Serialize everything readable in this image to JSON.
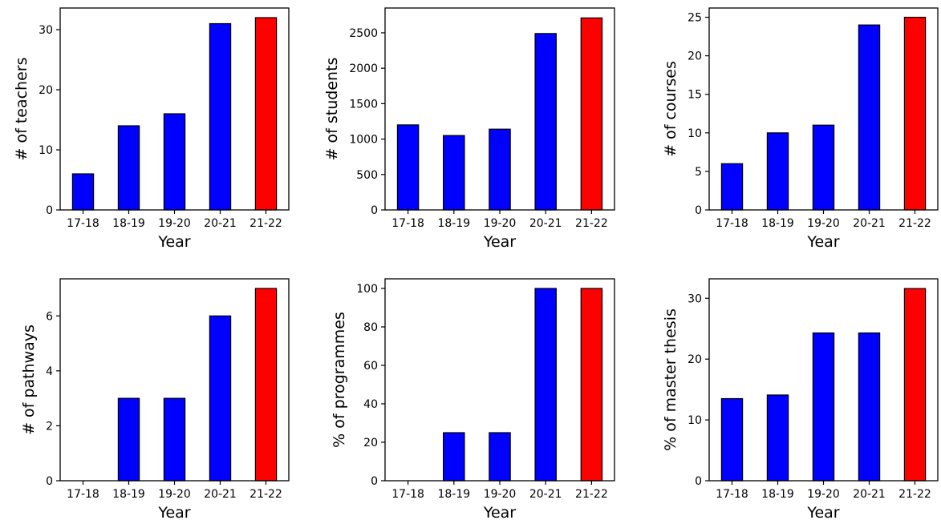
{
  "chart_data": [
    {
      "type": "bar",
      "categories": [
        "17-18",
        "18-19",
        "19-20",
        "20-21",
        "21-22"
      ],
      "values": [
        6,
        14,
        16,
        31,
        32
      ],
      "xlabel": "Year",
      "ylabel": "# of teachers",
      "ylim": [
        0,
        33.6
      ],
      "yticks": [
        0,
        10,
        20,
        30
      ],
      "colors": [
        "#0000ff",
        "#0000ff",
        "#0000ff",
        "#0000ff",
        "#ff0000"
      ],
      "grid": false
    },
    {
      "type": "bar",
      "categories": [
        "17-18",
        "18-19",
        "19-20",
        "20-21",
        "21-22"
      ],
      "values": [
        1200,
        1050,
        1140,
        2490,
        2710
      ],
      "xlabel": "Year",
      "ylabel": "# of students",
      "ylim": [
        0,
        2850
      ],
      "yticks": [
        0,
        500,
        1000,
        1500,
        2000,
        2500
      ],
      "colors": [
        "#0000ff",
        "#0000ff",
        "#0000ff",
        "#0000ff",
        "#ff0000"
      ],
      "grid": false
    },
    {
      "type": "bar",
      "categories": [
        "17-18",
        "18-19",
        "19-20",
        "20-21",
        "21-22"
      ],
      "values": [
        6,
        10,
        11,
        24,
        25
      ],
      "xlabel": "Year",
      "ylabel": "# of courses",
      "ylim": [
        0,
        26.2
      ],
      "yticks": [
        0,
        5,
        10,
        15,
        20,
        25
      ],
      "colors": [
        "#0000ff",
        "#0000ff",
        "#0000ff",
        "#0000ff",
        "#ff0000"
      ],
      "grid": false
    },
    {
      "type": "bar",
      "categories": [
        "17-18",
        "18-19",
        "19-20",
        "20-21",
        "21-22"
      ],
      "values": [
        0,
        3,
        3,
        6,
        7
      ],
      "xlabel": "Year",
      "ylabel": "# of pathways",
      "ylim": [
        0,
        7.35
      ],
      "yticks": [
        0,
        2,
        4,
        6
      ],
      "colors": [
        "#0000ff",
        "#0000ff",
        "#0000ff",
        "#0000ff",
        "#ff0000"
      ],
      "grid": false
    },
    {
      "type": "bar",
      "categories": [
        "17-18",
        "18-19",
        "19-20",
        "20-21",
        "21-22"
      ],
      "values": [
        0,
        25,
        25,
        100,
        100
      ],
      "xlabel": "Year",
      "ylabel": "% of programmes",
      "ylim": [
        0,
        105
      ],
      "yticks": [
        0,
        20,
        40,
        60,
        80,
        100
      ],
      "colors": [
        "#0000ff",
        "#0000ff",
        "#0000ff",
        "#0000ff",
        "#ff0000"
      ],
      "grid": false
    },
    {
      "type": "bar",
      "categories": [
        "17-18",
        "18-19",
        "19-20",
        "20-21",
        "21-22"
      ],
      "values": [
        13.5,
        14.1,
        24.3,
        24.3,
        31.6
      ],
      "xlabel": "Year",
      "ylabel": "% of master thesis",
      "ylim": [
        0,
        33.2
      ],
      "yticks": [
        0,
        10,
        20,
        30
      ],
      "colors": [
        "#0000ff",
        "#0000ff",
        "#0000ff",
        "#0000ff",
        "#ff0000"
      ],
      "grid": false
    }
  ]
}
